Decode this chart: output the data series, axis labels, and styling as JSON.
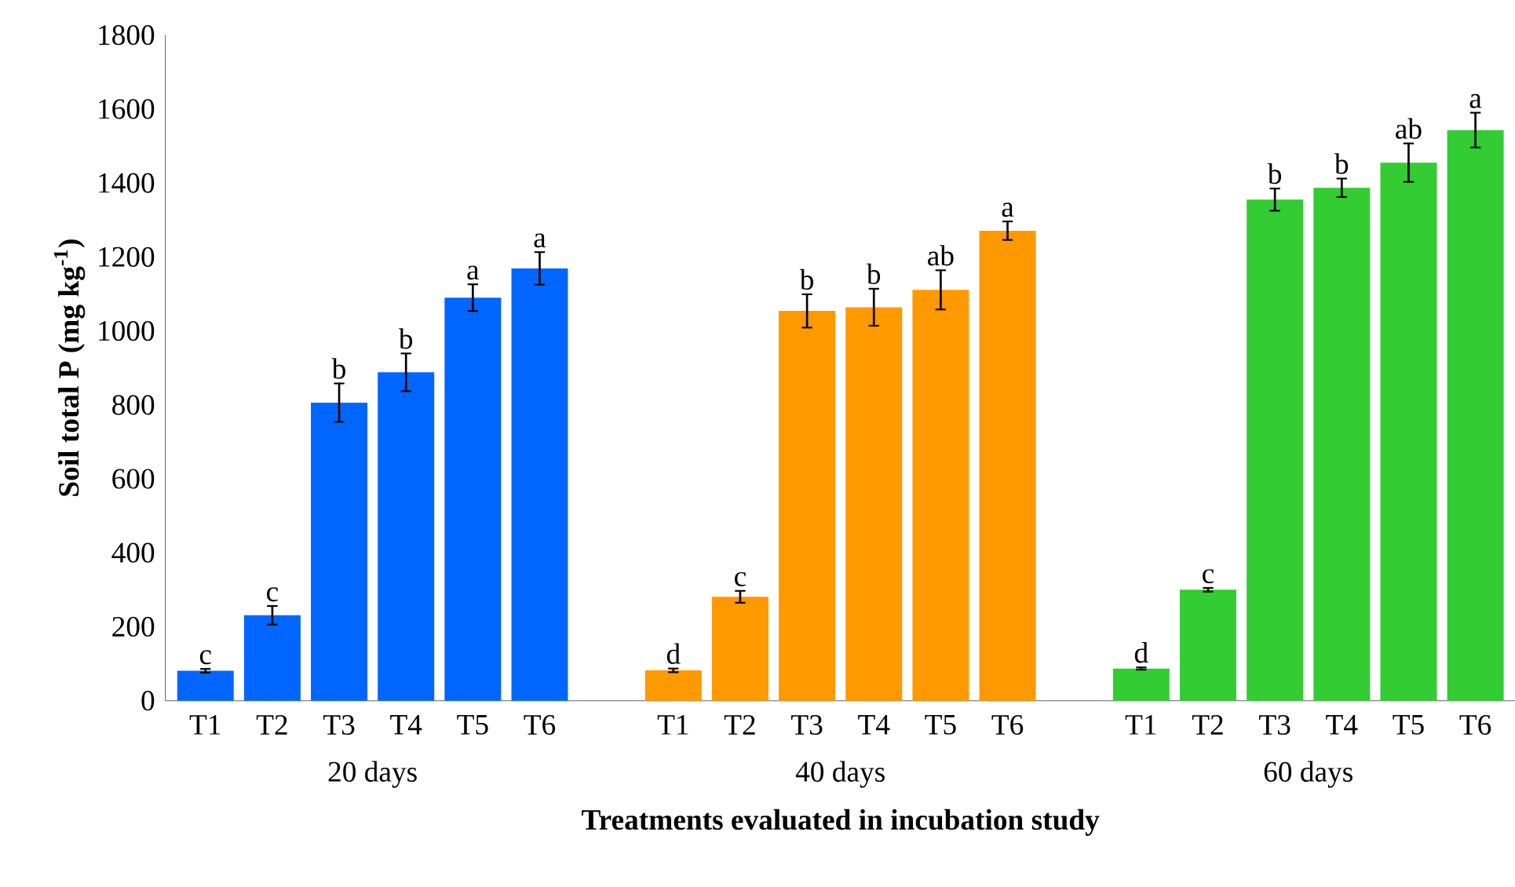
{
  "chart_data": {
    "type": "bar",
    "xlabel": "Treatments evaluated in incubation study",
    "ylabel": "Soil total P (mg kg$^{-1}$)",
    "categories": [
      "T1",
      "T2",
      "T3",
      "T4",
      "T5",
      "T6",
      null,
      "T1",
      "T2",
      "T3",
      "T4",
      "T5",
      "T6",
      null,
      "T1",
      "T2",
      "T3",
      "T4",
      "T5",
      "T6"
    ],
    "ylim": [
      0,
      1800
    ],
    "yticks": [
      0,
      200,
      400,
      600,
      800,
      1000,
      1200,
      1400,
      1600,
      1800
    ],
    "series": [
      {
        "name": "20 days",
        "color": "#0066ff",
        "values": [
          81,
          231,
          806,
          888,
          1090,
          1169,
          null,
          null,
          null,
          null,
          null,
          null,
          null,
          null,
          null,
          null,
          null,
          null,
          null,
          null
        ],
        "errors": [
          5,
          25,
          52,
          51,
          36,
          44,
          null,
          null,
          null,
          null,
          null,
          null,
          null,
          null,
          null,
          null,
          null,
          null,
          null,
          null
        ],
        "value_labels": [
          "c",
          "c",
          "b",
          "b",
          "a",
          "a",
          null,
          null,
          null,
          null,
          null,
          null,
          null,
          null,
          null,
          null,
          null,
          null,
          null,
          null
        ]
      },
      {
        "name": "40 days",
        "color": "#ff9900",
        "values": [
          null,
          null,
          null,
          null,
          null,
          null,
          null,
          82,
          281,
          1054,
          1064,
          1111,
          1271,
          null,
          null,
          null,
          null,
          null,
          null,
          null
        ],
        "errors": [
          null,
          null,
          null,
          null,
          null,
          null,
          null,
          5,
          16,
          45,
          50,
          53,
          25,
          null,
          null,
          null,
          null,
          null,
          null,
          null
        ],
        "value_labels": [
          null,
          null,
          null,
          null,
          null,
          null,
          null,
          "d",
          "c",
          "b",
          "b",
          "ab",
          "a",
          null,
          null,
          null,
          null,
          null,
          null,
          null
        ]
      },
      {
        "name": "60 days",
        "color": "#33cc33",
        "values": [
          null,
          null,
          null,
          null,
          null,
          null,
          null,
          null,
          null,
          null,
          null,
          null,
          null,
          null,
          87,
          300,
          1355,
          1387,
          1455,
          1543
        ],
        "errors": [
          null,
          null,
          null,
          null,
          null,
          null,
          null,
          null,
          null,
          null,
          null,
          null,
          null,
          null,
          3,
          5,
          30,
          25,
          52,
          47
        ],
        "value_labels": [
          null,
          null,
          null,
          null,
          null,
          null,
          null,
          null,
          null,
          null,
          null,
          null,
          null,
          null,
          "d",
          "c",
          "b",
          "b",
          "ab",
          "a"
        ]
      }
    ]
  }
}
